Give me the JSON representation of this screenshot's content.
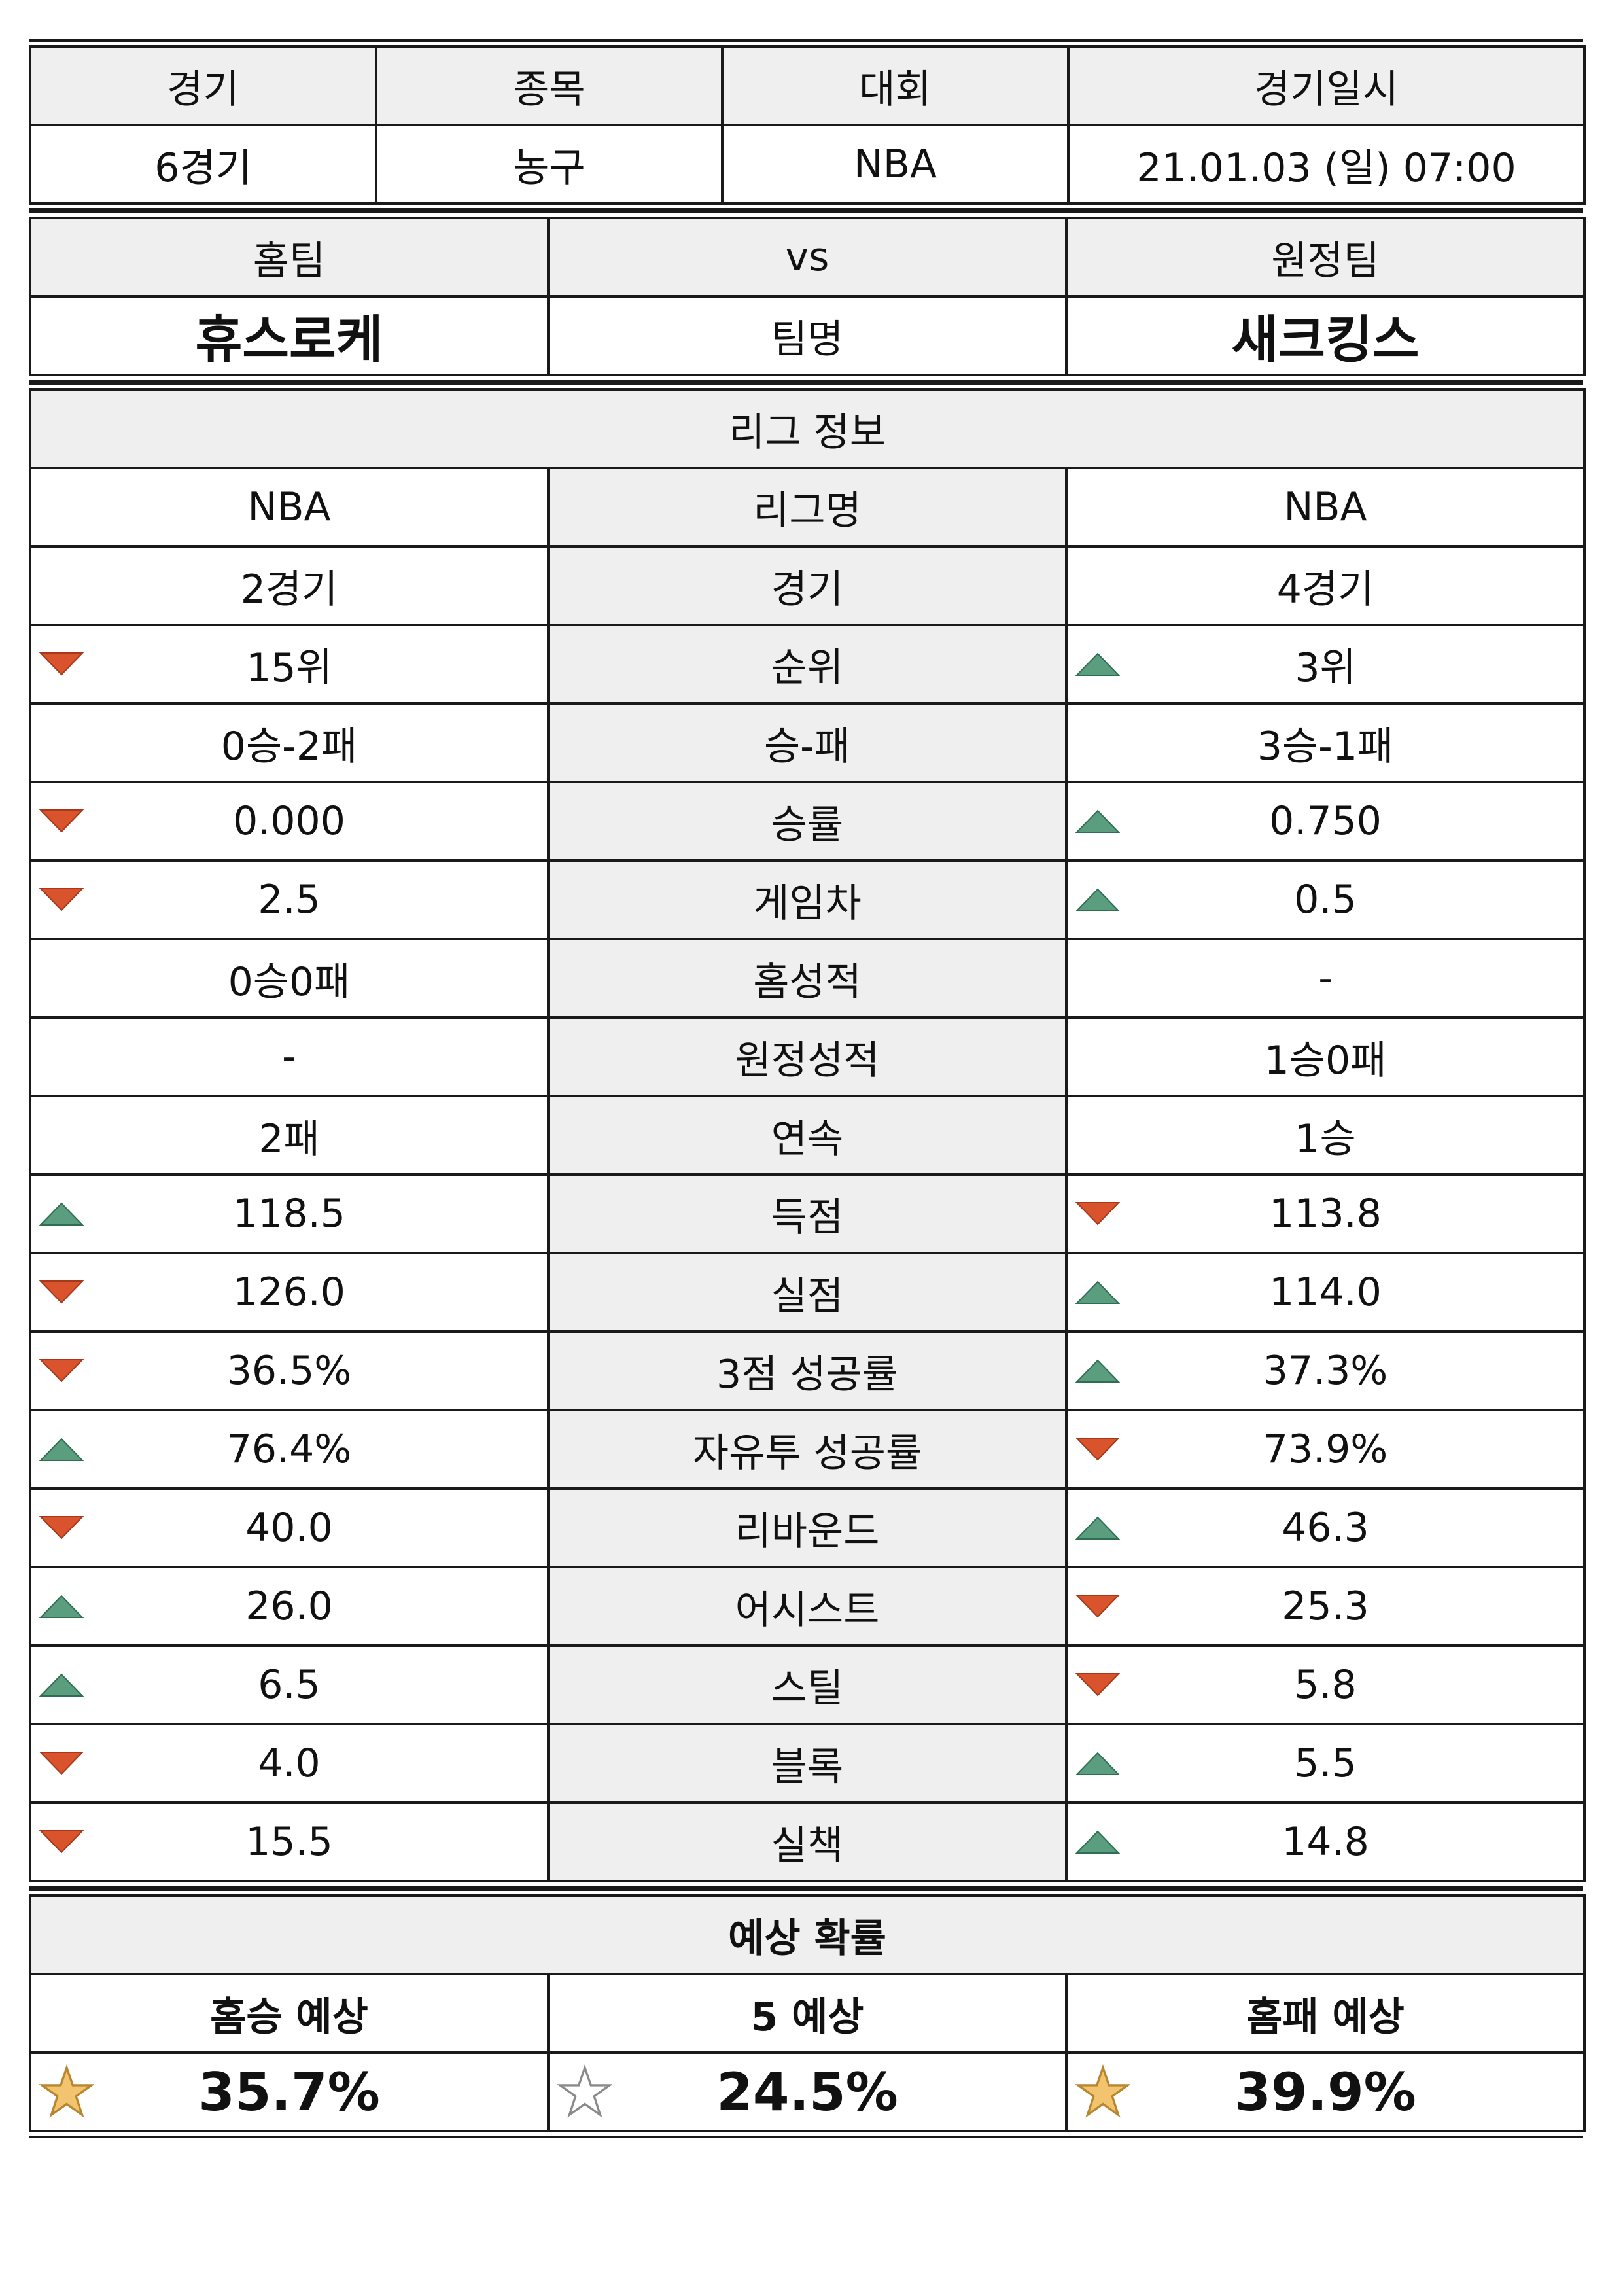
{
  "match": {
    "headers": [
      "경기",
      "종목",
      "대회",
      "경기일시"
    ],
    "values": [
      "6경기",
      "농구",
      "NBA",
      "21.01.03 (일) 07:00"
    ]
  },
  "teams": {
    "home_label": "홈팀",
    "vs_label": "vs",
    "away_label": "원정팀",
    "home_name": "휴스로케",
    "name_label": "팀명",
    "away_name": "새크킹스"
  },
  "league": {
    "title": "리그 정보",
    "rows": [
      {
        "home": "NBA",
        "label": "리그명",
        "away": "NBA",
        "home_ind": "",
        "away_ind": ""
      },
      {
        "home": "2경기",
        "label": "경기",
        "away": "4경기",
        "home_ind": "",
        "away_ind": ""
      },
      {
        "home": "15위",
        "label": "순위",
        "away": "3위",
        "home_ind": "down",
        "away_ind": "up"
      },
      {
        "home": "0승-2패",
        "label": "승-패",
        "away": "3승-1패",
        "home_ind": "",
        "away_ind": ""
      },
      {
        "home": "0.000",
        "label": "승률",
        "away": "0.750",
        "home_ind": "down",
        "away_ind": "up"
      },
      {
        "home": "2.5",
        "label": "게임차",
        "away": "0.5",
        "home_ind": "down",
        "away_ind": "up"
      },
      {
        "home": "0승0패",
        "label": "홈성적",
        "away": "-",
        "home_ind": "",
        "away_ind": ""
      },
      {
        "home": "-",
        "label": "원정성적",
        "away": "1승0패",
        "home_ind": "",
        "away_ind": ""
      },
      {
        "home": "2패",
        "label": "연속",
        "away": "1승",
        "home_ind": "",
        "away_ind": ""
      },
      {
        "home": "118.5",
        "label": "득점",
        "away": "113.8",
        "home_ind": "up",
        "away_ind": "down"
      },
      {
        "home": "126.0",
        "label": "실점",
        "away": "114.0",
        "home_ind": "down",
        "away_ind": "up"
      },
      {
        "home": "36.5%",
        "label": "3점 성공률",
        "away": "37.3%",
        "home_ind": "down",
        "away_ind": "up"
      },
      {
        "home": "76.4%",
        "label": "자유투 성공률",
        "away": "73.9%",
        "home_ind": "up",
        "away_ind": "down"
      },
      {
        "home": "40.0",
        "label": "리바운드",
        "away": "46.3",
        "home_ind": "down",
        "away_ind": "up"
      },
      {
        "home": "26.0",
        "label": "어시스트",
        "away": "25.3",
        "home_ind": "up",
        "away_ind": "down"
      },
      {
        "home": "6.5",
        "label": "스틸",
        "away": "5.8",
        "home_ind": "up",
        "away_ind": "down"
      },
      {
        "home": "4.0",
        "label": "블록",
        "away": "5.5",
        "home_ind": "down",
        "away_ind": "up"
      },
      {
        "home": "15.5",
        "label": "실책",
        "away": "14.8",
        "home_ind": "down",
        "away_ind": "up"
      }
    ]
  },
  "prediction": {
    "title": "예상 확률",
    "items": [
      {
        "label": "홈승 예상",
        "value": "35.7%",
        "star": "filled"
      },
      {
        "label": "5 예상",
        "value": "24.5%",
        "star": "outline"
      },
      {
        "label": "홈패 예상",
        "value": "39.9%",
        "star": "filled"
      }
    ]
  },
  "colors": {
    "up": "#5a9e7f",
    "down": "#d9532c",
    "star_fill": "#f2c46f",
    "header_gray": "#efefef"
  }
}
